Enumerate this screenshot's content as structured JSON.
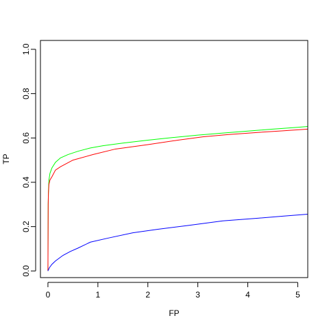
{
  "chart_data": {
    "type": "line",
    "xlabel": "FP",
    "ylabel": "TP",
    "xlim": [
      -0.15,
      5.2
    ],
    "ylim": [
      -0.03,
      1.04
    ],
    "x_ticks": [
      0,
      1,
      2,
      3,
      4,
      5
    ],
    "x_tick_labels": [
      "0",
      "1",
      "2",
      "3",
      "4",
      "5"
    ],
    "y_ticks": [
      0.0,
      0.2,
      0.4,
      0.6,
      0.8,
      1.0
    ],
    "y_tick_labels": [
      "0.0",
      "0.2",
      "0.4",
      "0.6",
      "0.8",
      "1.0"
    ],
    "grid": false,
    "series": [
      {
        "color": "#00ff00",
        "points": [
          [
            0.0,
            0.0
          ],
          [
            0.005,
            0.3
          ],
          [
            0.01,
            0.36
          ],
          [
            0.02,
            0.41
          ],
          [
            0.04,
            0.44
          ],
          [
            0.08,
            0.465
          ],
          [
            0.15,
            0.49
          ],
          [
            0.25,
            0.51
          ],
          [
            0.4,
            0.525
          ],
          [
            0.6,
            0.54
          ],
          [
            0.85,
            0.555
          ],
          [
            1.1,
            0.565
          ],
          [
            1.5,
            0.577
          ],
          [
            2.0,
            0.59
          ],
          [
            2.5,
            0.602
          ],
          [
            3.0,
            0.613
          ],
          [
            3.5,
            0.622
          ],
          [
            4.0,
            0.631
          ],
          [
            4.5,
            0.64
          ],
          [
            5.0,
            0.648
          ],
          [
            5.2,
            0.652
          ]
        ]
      },
      {
        "color": "#ff0000",
        "points": [
          [
            0.0,
            0.0
          ],
          [
            0.005,
            0.3
          ],
          [
            0.01,
            0.35
          ],
          [
            0.02,
            0.39
          ],
          [
            0.04,
            0.41
          ],
          [
            0.08,
            0.425
          ],
          [
            0.15,
            0.455
          ],
          [
            0.25,
            0.47
          ],
          [
            0.5,
            0.5
          ],
          [
            0.9,
            0.525
          ],
          [
            1.35,
            0.55
          ],
          [
            2.0,
            0.57
          ],
          [
            2.6,
            0.59
          ],
          [
            3.1,
            0.605
          ],
          [
            3.6,
            0.615
          ],
          [
            4.2,
            0.625
          ],
          [
            4.7,
            0.632
          ],
          [
            5.2,
            0.64
          ]
        ]
      },
      {
        "color": "#0000ff",
        "points": [
          [
            0.0,
            0.0
          ],
          [
            0.03,
            0.015
          ],
          [
            0.08,
            0.03
          ],
          [
            0.15,
            0.045
          ],
          [
            0.3,
            0.07
          ],
          [
            0.45,
            0.088
          ],
          [
            0.6,
            0.103
          ],
          [
            0.85,
            0.13
          ],
          [
            1.2,
            0.148
          ],
          [
            1.7,
            0.172
          ],
          [
            2.2,
            0.188
          ],
          [
            2.8,
            0.205
          ],
          [
            3.5,
            0.226
          ],
          [
            4.2,
            0.238
          ],
          [
            4.7,
            0.247
          ],
          [
            5.2,
            0.256
          ]
        ]
      }
    ]
  }
}
